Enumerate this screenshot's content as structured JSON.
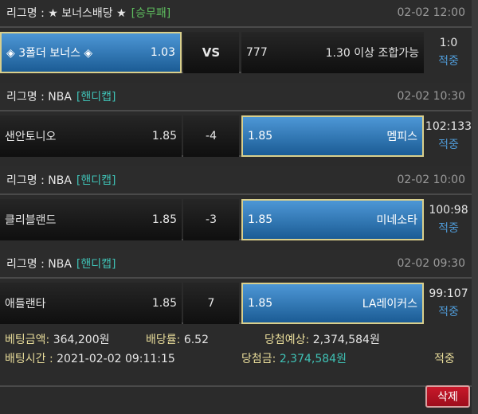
{
  "bets": [
    {
      "league_label": "리그명 : ★ 보너스배당 ★",
      "type": "[승무패]",
      "type_color": "#5fbf5f",
      "time": "02-02 12:00",
      "home": "◈ 3폴더 보너스 ◈",
      "home_odds": "1.03",
      "mid": "VS",
      "away_odds": "777",
      "away": "1.30 이상 조합가능",
      "score": "1:0",
      "result": "적중",
      "selected": "home"
    },
    {
      "league_label": "리그명 : NBA",
      "type": "[핸디캡]",
      "type_color": "#3fc1b5",
      "time": "02-02 10:30",
      "home": "샌안토니오",
      "home_odds": "1.85",
      "mid": "-4",
      "away_odds": "1.85",
      "away": "멤피스",
      "score": "102:133",
      "result": "적중",
      "selected": "away"
    },
    {
      "league_label": "리그명 : NBA",
      "type": "[핸디캡]",
      "type_color": "#3fc1b5",
      "time": "02-02 10:00",
      "home": "클리블랜드",
      "home_odds": "1.85",
      "mid": "-3",
      "away_odds": "1.85",
      "away": "미네소타",
      "score": "100:98",
      "result": "적중",
      "selected": "away"
    },
    {
      "league_label": "리그명 : NBA",
      "type": "[핸디캡]",
      "type_color": "#3fc1b5",
      "time": "02-02 09:30",
      "home": "애틀랜타",
      "home_odds": "1.85",
      "mid": "7",
      "away_odds": "1.85",
      "away": "LA레이커스",
      "score": "99:107",
      "result": "적중",
      "selected": "away"
    }
  ],
  "summary": {
    "bet_amount_label": "베팅금액:",
    "bet_amount": "364,200원",
    "odds_label": "배당률:",
    "odds": "6.52",
    "expected_label": "당첨예상:",
    "expected": "2,374,584원",
    "bet_time_label": "배팅시간 :",
    "bet_time": "2021-02-02 09:11:15",
    "win_label": "당첨금:",
    "win": "2,374,584원",
    "status": "적중"
  },
  "delete_label": "삭제"
}
